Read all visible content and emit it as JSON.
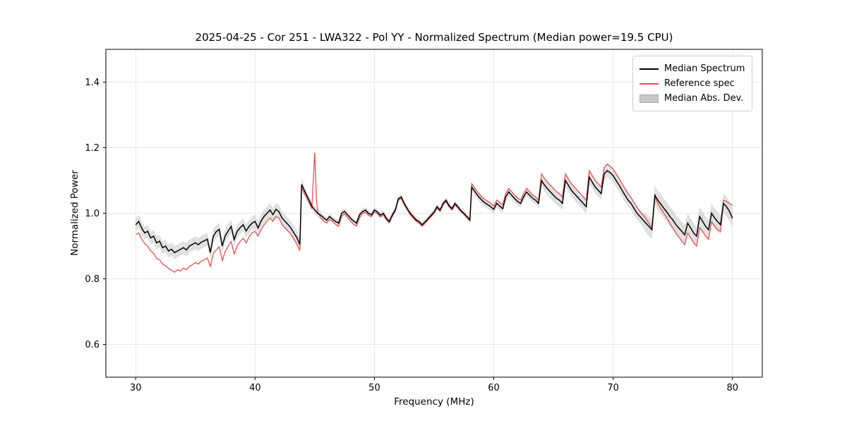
{
  "chart_data": {
    "type": "line",
    "title": "2025-04-25 - Cor 251 - LWA322 - Pol YY - Normalized Spectrum (Median power=19.5 CPU)",
    "xlabel": "Frequency (MHz)",
    "ylabel": "Normalized Power",
    "xlim": [
      27.5,
      82.5
    ],
    "ylim": [
      0.5,
      1.5
    ],
    "xticks": [
      30,
      40,
      50,
      60,
      70,
      80
    ],
    "xtick_labels": [
      "30",
      "40",
      "50",
      "60",
      "70",
      "80"
    ],
    "yticks": [
      0.6,
      0.8,
      1.0,
      1.2,
      1.4
    ],
    "ytick_labels": [
      "0.6",
      "0.8",
      "1.0",
      "1.2",
      "1.4"
    ],
    "grid": true,
    "colors": {
      "median": "#000000",
      "reference": "#e94f4f",
      "band": "#c6c6c6",
      "grid": "#e6e6e6",
      "spine": "#000000"
    },
    "legend": {
      "position": "upper right",
      "entries": [
        {
          "label": "Median Spectrum",
          "color": "#000000",
          "type": "line"
        },
        {
          "label": "Reference spec",
          "color": "#e94f4f",
          "type": "line"
        },
        {
          "label": "Median Abs. Dev.",
          "color": "#c8c8c8",
          "type": "patch"
        }
      ]
    },
    "mad_segments": [
      [
        27.5,
        44.0,
        0.02
      ],
      [
        44.0,
        45.5,
        0.012
      ],
      [
        45.5,
        58.0,
        0.009
      ],
      [
        58.0,
        64.0,
        0.013
      ],
      [
        64.0,
        72.5,
        0.02
      ],
      [
        72.5,
        82.5,
        0.03
      ]
    ],
    "series_names": [
      "frequency_mhz",
      "median_spectrum",
      "reference_spec"
    ],
    "points": [
      [
        30.0,
        0.965,
        0.935
      ],
      [
        30.25,
        0.975,
        0.94
      ],
      [
        30.5,
        0.955,
        0.922
      ],
      [
        30.75,
        0.94,
        0.908
      ],
      [
        31.0,
        0.945,
        0.9
      ],
      [
        31.25,
        0.925,
        0.885
      ],
      [
        31.5,
        0.93,
        0.878
      ],
      [
        31.75,
        0.91,
        0.862
      ],
      [
        32.0,
        0.915,
        0.858
      ],
      [
        32.25,
        0.895,
        0.845
      ],
      [
        32.5,
        0.9,
        0.84
      ],
      [
        32.75,
        0.885,
        0.832
      ],
      [
        33.0,
        0.89,
        0.826
      ],
      [
        33.25,
        0.88,
        0.82
      ],
      [
        33.5,
        0.885,
        0.828
      ],
      [
        33.75,
        0.89,
        0.824
      ],
      [
        34.0,
        0.895,
        0.833
      ],
      [
        34.25,
        0.888,
        0.828
      ],
      [
        34.5,
        0.9,
        0.838
      ],
      [
        34.75,
        0.905,
        0.843
      ],
      [
        35.0,
        0.91,
        0.85
      ],
      [
        35.25,
        0.904,
        0.845
      ],
      [
        35.5,
        0.912,
        0.854
      ],
      [
        35.75,
        0.916,
        0.858
      ],
      [
        36.0,
        0.921,
        0.864
      ],
      [
        36.25,
        0.88,
        0.838
      ],
      [
        36.5,
        0.93,
        0.878
      ],
      [
        36.75,
        0.944,
        0.888
      ],
      [
        37.0,
        0.951,
        0.898
      ],
      [
        37.25,
        0.9,
        0.856
      ],
      [
        37.5,
        0.931,
        0.884
      ],
      [
        37.75,
        0.946,
        0.9
      ],
      [
        38.0,
        0.96,
        0.914
      ],
      [
        38.25,
        0.92,
        0.876
      ],
      [
        38.5,
        0.945,
        0.9
      ],
      [
        38.75,
        0.956,
        0.914
      ],
      [
        39.0,
        0.965,
        0.924
      ],
      [
        39.25,
        0.946,
        0.91
      ],
      [
        39.5,
        0.96,
        0.928
      ],
      [
        39.75,
        0.97,
        0.94
      ],
      [
        40.0,
        0.975,
        0.945
      ],
      [
        40.25,
        0.955,
        0.93
      ],
      [
        40.5,
        0.976,
        0.95
      ],
      [
        40.75,
        0.99,
        0.964
      ],
      [
        41.0,
        1.0,
        0.976
      ],
      [
        41.25,
        1.01,
        0.986
      ],
      [
        41.5,
        0.996,
        0.975
      ],
      [
        41.75,
        1.012,
        0.99
      ],
      [
        42.0,
        1.005,
        0.985
      ],
      [
        42.25,
        0.986,
        0.966
      ],
      [
        42.5,
        0.976,
        0.956
      ],
      [
        42.75,
        0.966,
        0.946
      ],
      [
        43.0,
        0.955,
        0.936
      ],
      [
        43.25,
        0.94,
        0.921
      ],
      [
        43.5,
        0.926,
        0.906
      ],
      [
        43.75,
        0.905,
        0.886
      ],
      [
        43.9,
        1.088,
        1.078
      ],
      [
        44.25,
        1.06,
        1.052
      ],
      [
        44.5,
        1.042,
        1.034
      ],
      [
        44.75,
        1.022,
        1.014
      ],
      [
        45.0,
        1.01,
        1.185
      ],
      [
        45.15,
        1.004,
        1.04
      ],
      [
        45.25,
        1.0,
        1.005
      ],
      [
        45.5,
        0.994,
        0.986
      ],
      [
        45.75,
        0.986,
        0.976
      ],
      [
        46.0,
        0.979,
        0.97
      ],
      [
        46.25,
        0.99,
        0.981
      ],
      [
        46.5,
        0.981,
        0.974
      ],
      [
        46.75,
        0.975,
        0.966
      ],
      [
        47.0,
        0.97,
        0.96
      ],
      [
        47.25,
        1.0,
        0.99
      ],
      [
        47.5,
        1.006,
        0.999
      ],
      [
        47.75,
        0.995,
        0.986
      ],
      [
        48.0,
        0.985,
        0.976
      ],
      [
        48.25,
        0.976,
        0.966
      ],
      [
        48.5,
        0.97,
        0.961
      ],
      [
        48.75,
        0.995,
        0.986
      ],
      [
        49.0,
        1.005,
        0.999
      ],
      [
        49.25,
        1.01,
        1.004
      ],
      [
        49.5,
        1.0,
        0.994
      ],
      [
        49.75,
        0.995,
        0.99
      ],
      [
        50.0,
        1.01,
        1.004
      ],
      [
        50.25,
        1.004,
        0.999
      ],
      [
        50.5,
        0.994,
        0.989
      ],
      [
        50.75,
        1.0,
        0.995
      ],
      [
        51.0,
        0.985,
        0.98
      ],
      [
        51.25,
        0.975,
        0.971
      ],
      [
        51.5,
        0.995,
        0.991
      ],
      [
        51.75,
        1.01,
        1.006
      ],
      [
        52.0,
        1.044,
        1.04
      ],
      [
        52.25,
        1.05,
        1.046
      ],
      [
        52.5,
        1.03,
        1.026
      ],
      [
        52.75,
        1.014,
        1.011
      ],
      [
        53.0,
        1.0,
        0.996
      ],
      [
        53.25,
        0.99,
        0.986
      ],
      [
        53.5,
        0.98,
        0.976
      ],
      [
        53.75,
        0.974,
        0.97
      ],
      [
        54.0,
        0.965,
        0.961
      ],
      [
        54.25,
        0.974,
        0.97
      ],
      [
        54.5,
        0.984,
        0.98
      ],
      [
        54.75,
        0.994,
        0.99
      ],
      [
        55.0,
        1.004,
        1.0
      ],
      [
        55.25,
        1.02,
        1.016
      ],
      [
        55.5,
        1.01,
        1.006
      ],
      [
        55.75,
        1.03,
        1.026
      ],
      [
        56.0,
        1.04,
        1.036
      ],
      [
        56.25,
        1.024,
        1.02
      ],
      [
        56.5,
        1.014,
        1.011
      ],
      [
        56.75,
        1.03,
        1.026
      ],
      [
        57.0,
        1.02,
        1.016
      ],
      [
        57.25,
        1.008,
        1.005
      ],
      [
        57.5,
        1.0,
        0.997
      ],
      [
        57.75,
        0.99,
        0.987
      ],
      [
        58.0,
        0.98,
        0.977
      ],
      [
        58.15,
        1.08,
        1.09
      ],
      [
        58.5,
        1.062,
        1.072
      ],
      [
        58.75,
        1.05,
        1.06
      ],
      [
        59.0,
        1.04,
        1.05
      ],
      [
        59.25,
        1.032,
        1.042
      ],
      [
        59.5,
        1.026,
        1.036
      ],
      [
        59.75,
        1.02,
        1.03
      ],
      [
        60.0,
        1.012,
        1.022
      ],
      [
        60.25,
        1.03,
        1.04
      ],
      [
        60.5,
        1.022,
        1.032
      ],
      [
        60.75,
        1.014,
        1.026
      ],
      [
        61.0,
        1.05,
        1.06
      ],
      [
        61.25,
        1.065,
        1.075
      ],
      [
        61.5,
        1.055,
        1.066
      ],
      [
        61.75,
        1.045,
        1.056
      ],
      [
        62.0,
        1.036,
        1.046
      ],
      [
        62.25,
        1.03,
        1.04
      ],
      [
        62.5,
        1.05,
        1.06
      ],
      [
        62.75,
        1.065,
        1.076
      ],
      [
        63.0,
        1.055,
        1.066
      ],
      [
        63.25,
        1.046,
        1.056
      ],
      [
        63.5,
        1.04,
        1.05
      ],
      [
        63.75,
        1.03,
        1.04
      ],
      [
        64.0,
        1.1,
        1.12
      ],
      [
        64.25,
        1.086,
        1.106
      ],
      [
        64.5,
        1.075,
        1.095
      ],
      [
        64.75,
        1.065,
        1.085
      ],
      [
        65.0,
        1.055,
        1.075
      ],
      [
        65.25,
        1.046,
        1.066
      ],
      [
        65.5,
        1.04,
        1.06
      ],
      [
        65.75,
        1.03,
        1.05
      ],
      [
        66.0,
        1.1,
        1.12
      ],
      [
        66.25,
        1.086,
        1.105
      ],
      [
        66.5,
        1.07,
        1.09
      ],
      [
        66.75,
        1.06,
        1.08
      ],
      [
        67.0,
        1.05,
        1.07
      ],
      [
        67.25,
        1.04,
        1.06
      ],
      [
        67.5,
        1.03,
        1.05
      ],
      [
        67.75,
        1.02,
        1.04
      ],
      [
        68.0,
        1.11,
        1.13
      ],
      [
        68.25,
        1.095,
        1.115
      ],
      [
        68.5,
        1.08,
        1.1
      ],
      [
        68.75,
        1.07,
        1.09
      ],
      [
        69.0,
        1.06,
        1.08
      ],
      [
        69.25,
        1.12,
        1.14
      ],
      [
        69.5,
        1.13,
        1.15
      ],
      [
        69.75,
        1.124,
        1.144
      ],
      [
        70.0,
        1.115,
        1.135
      ],
      [
        70.25,
        1.1,
        1.12
      ],
      [
        70.5,
        1.086,
        1.106
      ],
      [
        70.75,
        1.07,
        1.09
      ],
      [
        71.0,
        1.055,
        1.075
      ],
      [
        71.25,
        1.04,
        1.06
      ],
      [
        71.5,
        1.03,
        1.048
      ],
      [
        71.75,
        1.015,
        1.033
      ],
      [
        72.0,
        1.0,
        1.018
      ],
      [
        72.25,
        0.99,
        1.005
      ],
      [
        72.5,
        0.98,
        0.995
      ],
      [
        72.75,
        0.97,
        0.984
      ],
      [
        73.0,
        0.96,
        0.97
      ],
      [
        73.25,
        0.95,
        0.955
      ],
      [
        73.5,
        1.055,
        1.05
      ],
      [
        73.75,
        1.04,
        1.03
      ],
      [
        74.0,
        1.028,
        1.014
      ],
      [
        74.25,
        1.015,
        1.0
      ],
      [
        74.5,
        1.004,
        0.986
      ],
      [
        74.75,
        0.99,
        0.97
      ],
      [
        75.0,
        0.98,
        0.955
      ],
      [
        75.25,
        0.966,
        0.94
      ],
      [
        75.5,
        0.955,
        0.928
      ],
      [
        75.75,
        0.945,
        0.915
      ],
      [
        76.0,
        0.934,
        0.904
      ],
      [
        76.25,
        0.97,
        0.94
      ],
      [
        76.5,
        0.955,
        0.925
      ],
      [
        76.75,
        0.94,
        0.91
      ],
      [
        77.0,
        0.93,
        0.9
      ],
      [
        77.25,
        0.99,
        0.956
      ],
      [
        77.5,
        0.975,
        0.944
      ],
      [
        77.75,
        0.96,
        0.93
      ],
      [
        78.0,
        0.95,
        0.92
      ],
      [
        78.25,
        1.0,
        0.974
      ],
      [
        78.5,
        0.986,
        0.96
      ],
      [
        78.75,
        0.975,
        0.95
      ],
      [
        79.0,
        0.965,
        0.944
      ],
      [
        79.25,
        1.03,
        1.04
      ],
      [
        79.5,
        1.02,
        1.036
      ],
      [
        79.75,
        1.006,
        1.03
      ],
      [
        80.0,
        0.985,
        1.024
      ]
    ]
  }
}
